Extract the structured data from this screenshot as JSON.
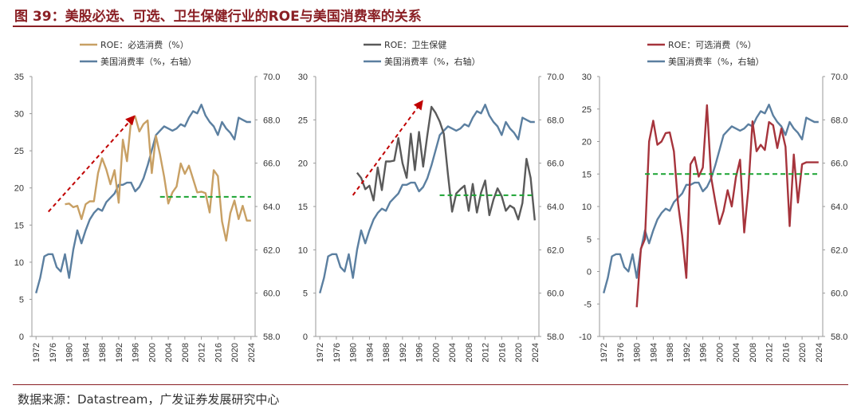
{
  "header": {
    "title": "图 39：美股必选、可选、卫生保健行业的ROE与美国消费率的关系"
  },
  "footer": {
    "source": "数据来源：Datastream，广发证券发展研究中心"
  },
  "colors": {
    "title": "#8a1f24",
    "consumption": "#5b7fa0",
    "staples": "#c8a064",
    "healthcare": "#5a5a5a",
    "discretionary": "#a6343c",
    "trend_arrow": "#c00000",
    "avg_dash": "#1aa332"
  },
  "chart_data": [
    {
      "type": "line",
      "legend": [
        "ROE：必选消费（%）",
        "美国消费率（%，右轴）"
      ],
      "x_ticks": [
        "1972",
        "1976",
        "1980",
        "1984",
        "1988",
        "1992",
        "1996",
        "2000",
        "2004",
        "2008",
        "2012",
        "2016",
        "2020",
        "2024"
      ],
      "xlim": [
        1971,
        2025
      ],
      "ylim_left": [
        0,
        35
      ],
      "yticks_left": [
        "0",
        "5",
        "10",
        "15",
        "20",
        "25",
        "30",
        "35"
      ],
      "ylim_right": [
        58,
        70
      ],
      "yticks_right": [
        "58.0",
        "60.0",
        "62.0",
        "64.0",
        "66.0",
        "68.0",
        "70.0"
      ],
      "roe": {
        "name": "ROE：必选消费（%）",
        "x": [
          1979,
          1980,
          1981,
          1982,
          1983,
          1984,
          1985,
          1986,
          1987,
          1988,
          1989,
          1990,
          1991,
          1992,
          1993,
          1994,
          1995,
          1996,
          1997,
          1998,
          1999,
          2000,
          2001,
          2002,
          2003,
          2004,
          2005,
          2006,
          2007,
          2008,
          2009,
          2010,
          2011,
          2012,
          2013,
          2014,
          2015,
          2016,
          2017,
          2018,
          2019,
          2020,
          2021,
          2022,
          2023,
          2024
        ],
        "y": [
          17.8,
          17.9,
          17.4,
          17.6,
          15.8,
          17.8,
          18.2,
          18.2,
          22.0,
          24.0,
          22.5,
          20.5,
          22.4,
          18.0,
          26.5,
          23.6,
          29.1,
          29.6,
          27.6,
          28.6,
          29.1,
          22.0,
          27.0,
          24.5,
          21.5,
          17.9,
          19.4,
          20.2,
          23.3,
          21.9,
          23.0,
          21.2,
          19.4,
          19.5,
          19.3,
          16.7,
          22.4,
          21.6,
          15.5,
          12.9,
          16.6,
          18.3,
          15.8,
          17.6,
          15.6,
          15.6
        ]
      },
      "consumption": {
        "name": "美国消费率（%，右轴）",
        "x": [
          1972,
          1973,
          1974,
          1975,
          1976,
          1977,
          1978,
          1979,
          1980,
          1981,
          1982,
          1983,
          1984,
          1985,
          1986,
          1987,
          1988,
          1989,
          1990,
          1991,
          1992,
          1993,
          1994,
          1995,
          1996,
          1997,
          1998,
          1999,
          2000,
          2001,
          2002,
          2003,
          2004,
          2005,
          2006,
          2007,
          2008,
          2009,
          2010,
          2011,
          2012,
          2013,
          2014,
          2015,
          2016,
          2017,
          2018,
          2019,
          2020,
          2021,
          2022,
          2023,
          2024
        ],
        "y": [
          60.0,
          60.7,
          61.7,
          61.8,
          61.8,
          61.2,
          61.0,
          61.8,
          60.7,
          62.0,
          62.9,
          62.3,
          62.9,
          63.4,
          63.7,
          63.9,
          63.8,
          64.2,
          64.4,
          64.6,
          65.0,
          65.0,
          65.1,
          65.1,
          64.7,
          64.9,
          65.3,
          65.9,
          66.6,
          67.3,
          67.5,
          67.7,
          67.6,
          67.5,
          67.6,
          67.8,
          67.7,
          68.1,
          68.4,
          68.3,
          68.7,
          68.2,
          67.9,
          67.7,
          67.3,
          67.9,
          67.6,
          67.4,
          67.1,
          68.1,
          68.0,
          67.9,
          67.9
        ]
      },
      "trend_arrow": {
        "from": [
          1975,
          16.8
        ],
        "to": [
          1996,
          29.8
        ]
      },
      "avg_line": {
        "from": [
          2002,
          18.8
        ],
        "to": [
          2024,
          18.8
        ]
      }
    },
    {
      "type": "line",
      "legend": [
        "ROE：卫生保健",
        "美国消费率（%，右轴）"
      ],
      "x_ticks": [
        "1972",
        "1976",
        "1980",
        "1984",
        "1988",
        "1992",
        "1996",
        "2000",
        "2004",
        "2008",
        "2012",
        "2016",
        "2020",
        "2024"
      ],
      "xlim": [
        1971,
        2025
      ],
      "ylim_left": [
        0,
        30
      ],
      "yticks_left": [
        "0",
        "5",
        "10",
        "15",
        "20",
        "25",
        "30"
      ],
      "ylim_right": [
        58,
        70
      ],
      "yticks_right": [
        "58.0",
        "60.0",
        "62.0",
        "64.0",
        "66.0",
        "68.0",
        "70.0"
      ],
      "roe": {
        "name": "ROE：卫生保健",
        "x": [
          1981,
          1982,
          1983,
          1984,
          1985,
          1986,
          1987,
          1988,
          1989,
          1990,
          1991,
          1992,
          1993,
          1994,
          1995,
          1996,
          1997,
          1998,
          1999,
          2000,
          2001,
          2002,
          2003,
          2004,
          2005,
          2006,
          2007,
          2008,
          2009,
          2010,
          2011,
          2012,
          2013,
          2014,
          2015,
          2016,
          2017,
          2018,
          2019,
          2020,
          2021,
          2022,
          2023,
          2024
        ],
        "y": [
          18.9,
          18.3,
          17.0,
          17.4,
          15.7,
          19.5,
          16.9,
          20.2,
          20.2,
          20.3,
          22.9,
          20.0,
          18.3,
          23.4,
          19.2,
          23.6,
          19.6,
          23.2,
          26.5,
          25.8,
          24.8,
          23.4,
          18.7,
          14.4,
          16.5,
          17.0,
          17.4,
          14.5,
          17.6,
          14.3,
          16.6,
          18.0,
          14.0,
          15.8,
          17.1,
          16.2,
          14.5,
          15.1,
          14.8,
          13.5,
          15.4,
          20.5,
          18.3,
          13.4
        ]
      },
      "consumption": {
        "name": "美国消费率（%，右轴）",
        "x": [
          1972,
          1973,
          1974,
          1975,
          1976,
          1977,
          1978,
          1979,
          1980,
          1981,
          1982,
          1983,
          1984,
          1985,
          1986,
          1987,
          1988,
          1989,
          1990,
          1991,
          1992,
          1993,
          1994,
          1995,
          1996,
          1997,
          1998,
          1999,
          2000,
          2001,
          2002,
          2003,
          2004,
          2005,
          2006,
          2007,
          2008,
          2009,
          2010,
          2011,
          2012,
          2013,
          2014,
          2015,
          2016,
          2017,
          2018,
          2019,
          2020,
          2021,
          2022,
          2023,
          2024
        ],
        "y": [
          60.0,
          60.7,
          61.7,
          61.8,
          61.8,
          61.2,
          61.0,
          61.8,
          60.7,
          62.0,
          62.9,
          62.3,
          62.9,
          63.4,
          63.7,
          63.9,
          63.8,
          64.2,
          64.4,
          64.6,
          65.0,
          65.0,
          65.1,
          65.1,
          64.7,
          64.9,
          65.3,
          65.9,
          66.6,
          67.3,
          67.5,
          67.7,
          67.6,
          67.5,
          67.6,
          67.8,
          67.7,
          68.1,
          68.4,
          68.3,
          68.7,
          68.2,
          67.9,
          67.7,
          67.3,
          67.9,
          67.6,
          67.4,
          67.1,
          68.1,
          68.0,
          67.9,
          67.9
        ]
      },
      "trend_arrow": {
        "from": [
          1980,
          16.3
        ],
        "to": [
          1997,
          27.3
        ]
      },
      "avg_line": {
        "from": [
          2001,
          16.3
        ],
        "to": [
          2024,
          16.3
        ]
      }
    },
    {
      "type": "line",
      "legend": [
        "ROE：可选消费（%）",
        "美国消费率（%，右轴）"
      ],
      "x_ticks": [
        "1972",
        "1976",
        "1980",
        "1984",
        "1988",
        "1992",
        "1996",
        "2000",
        "2004",
        "2008",
        "2012",
        "2016",
        "2020",
        "2024"
      ],
      "xlim": [
        1971,
        2025
      ],
      "ylim_left": [
        -10,
        30
      ],
      "yticks_left": [
        "-10",
        "-5",
        "0",
        "5",
        "10",
        "15",
        "20",
        "25",
        "30"
      ],
      "ylim_right": [
        58,
        70
      ],
      "yticks_right": [
        "58.0",
        "60.0",
        "62.0",
        "64.0",
        "66.0",
        "68.0",
        "70.0"
      ],
      "roe": {
        "name": "ROE：可选消费（%）",
        "x": [
          1980,
          1981,
          1982,
          1983,
          1984,
          1985,
          1986,
          1987,
          1988,
          1989,
          1990,
          1991,
          1992,
          1993,
          1994,
          1995,
          1996,
          1997,
          1998,
          1999,
          2000,
          2001,
          2002,
          2003,
          2004,
          2005,
          2006,
          2007,
          2008,
          2009,
          2010,
          2011,
          2012,
          2013,
          2014,
          2015,
          2016,
          2017,
          2018,
          2019,
          2020,
          2021,
          2022,
          2023,
          2024
        ],
        "y": [
          -5.5,
          3.5,
          5.0,
          20.0,
          23.2,
          19.5,
          20.0,
          21.3,
          21.4,
          18.5,
          10.5,
          5.5,
          -1.0,
          16.5,
          17.6,
          14.6,
          16.0,
          25.6,
          14.5,
          10.8,
          7.3,
          9.3,
          12.5,
          10.0,
          14.5,
          17.2,
          6.0,
          12.7,
          23.1,
          18.5,
          19.5,
          18.7,
          23.0,
          22.5,
          19.0,
          22.0,
          19.2,
          7.0,
          18.0,
          10.6,
          16.5,
          16.8,
          16.8,
          16.8,
          16.8
        ]
      },
      "consumption": {
        "name": "美国消费率（%，右轴）",
        "x": [
          1972,
          1973,
          1974,
          1975,
          1976,
          1977,
          1978,
          1979,
          1980,
          1981,
          1982,
          1983,
          1984,
          1985,
          1986,
          1987,
          1988,
          1989,
          1990,
          1991,
          1992,
          1993,
          1994,
          1995,
          1996,
          1997,
          1998,
          1999,
          2000,
          2001,
          2002,
          2003,
          2004,
          2005,
          2006,
          2007,
          2008,
          2009,
          2010,
          2011,
          2012,
          2013,
          2014,
          2015,
          2016,
          2017,
          2018,
          2019,
          2020,
          2021,
          2022,
          2023,
          2024
        ],
        "y": [
          60.0,
          60.7,
          61.7,
          61.8,
          61.8,
          61.2,
          61.0,
          61.8,
          60.7,
          62.0,
          62.9,
          62.3,
          62.9,
          63.4,
          63.7,
          63.9,
          63.8,
          64.2,
          64.4,
          64.6,
          65.0,
          65.0,
          65.1,
          65.1,
          64.7,
          64.9,
          65.3,
          65.9,
          66.6,
          67.3,
          67.5,
          67.7,
          67.6,
          67.5,
          67.6,
          67.8,
          67.7,
          68.1,
          68.4,
          68.3,
          68.7,
          68.2,
          67.9,
          67.7,
          67.3,
          67.9,
          67.6,
          67.4,
          67.1,
          68.1,
          68.0,
          67.9,
          67.9
        ]
      },
      "avg_line": {
        "from": [
          1982,
          15.0
        ],
        "to": [
          2024,
          15.0
        ]
      }
    }
  ]
}
